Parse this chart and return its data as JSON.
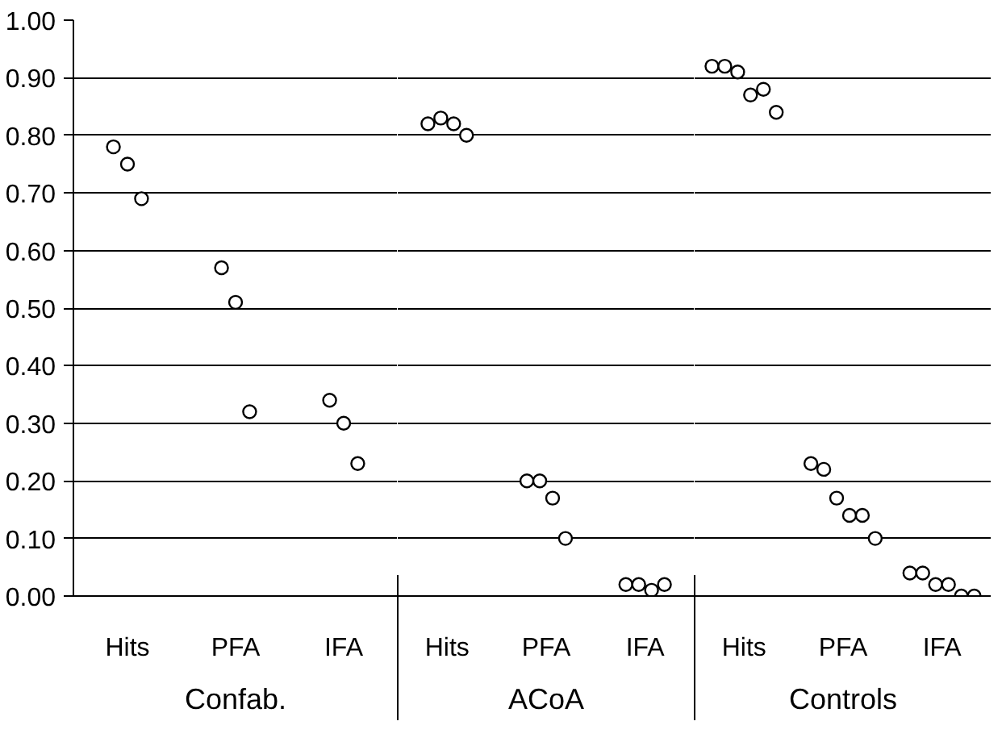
{
  "chart_data": [
    {
      "type": "scatter",
      "marker": "circle",
      "grid": "y",
      "xlabel": "Confab.",
      "categories": [
        "Hits",
        "PFA",
        "IFA"
      ],
      "ylim": [
        0,
        1
      ],
      "yticks": [
        {
          "value": 0,
          "label": "0.00"
        },
        {
          "value": 0.1,
          "label": "0.10"
        },
        {
          "value": 0.2,
          "label": "0.20"
        },
        {
          "value": 0.3,
          "label": "0.30"
        },
        {
          "value": 0.4,
          "label": "0.40"
        },
        {
          "value": 0.5,
          "label": "0.50"
        },
        {
          "value": 0.6,
          "label": "0.60"
        },
        {
          "value": 0.7,
          "label": "0.70"
        },
        {
          "value": 0.8,
          "label": "0.80"
        },
        {
          "value": 0.9,
          "label": "0.90"
        },
        {
          "value": 1,
          "label": "1.00"
        }
      ],
      "series": [
        {
          "color": "#000000",
          "x": [
            "Hits",
            "Hits",
            "Hits",
            "PFA",
            "PFA",
            "PFA",
            "IFA",
            "IFA",
            "IFA"
          ],
          "values": [
            0.78,
            0.75,
            0.69,
            0.57,
            0.51,
            0.32,
            0.34,
            0.3,
            0.23
          ]
        }
      ]
    },
    {
      "type": "scatter",
      "marker": "circle",
      "grid": "y",
      "xlabel": "ACoA",
      "tick_labels": "x",
      "categories": [
        "Hits",
        "PFA",
        "IFA"
      ],
      "ylim": [
        0,
        1
      ],
      "yticks": [
        0,
        0.1,
        0.2,
        0.3,
        0.4,
        0.5,
        0.6,
        0.7,
        0.8,
        0.9,
        1
      ],
      "series": [
        {
          "color": "#000000",
          "x": [
            "Hits",
            "Hits",
            "Hits",
            "Hits",
            "PFA",
            "PFA",
            "PFA",
            "PFA",
            "IFA",
            "IFA",
            "IFA",
            "IFA"
          ],
          "values": [
            0.82,
            0.83,
            0.82,
            0.8,
            0.2,
            0.2,
            0.17,
            0.1,
            0.02,
            0.02,
            0.01,
            0.02
          ]
        }
      ]
    },
    {
      "type": "scatter",
      "marker": "circle",
      "grid": "y",
      "xlabel": "Controls",
      "tick_labels": "x",
      "categories": [
        "Hits",
        "PFA",
        "IFA"
      ],
      "ylim": [
        0,
        1
      ],
      "yticks": [
        0,
        0.1,
        0.2,
        0.3,
        0.4,
        0.5,
        0.6,
        0.7,
        0.8,
        0.9,
        1
      ],
      "series": [
        {
          "color": "#000000",
          "x": [
            "Hits",
            "Hits",
            "Hits",
            "Hits",
            "Hits",
            "Hits",
            "PFA",
            "PFA",
            "PFA",
            "PFA",
            "PFA",
            "PFA",
            "IFA",
            "IFA",
            "IFA",
            "IFA",
            "IFA",
            "IFA"
          ],
          "values": [
            0.92,
            0.92,
            0.91,
            0.87,
            0.88,
            0.84,
            0.23,
            0.22,
            0.17,
            0.14,
            0.14,
            0.1,
            0.04,
            0.04,
            0.02,
            0.02,
            0.0,
            0.0
          ]
        }
      ]
    }
  ]
}
